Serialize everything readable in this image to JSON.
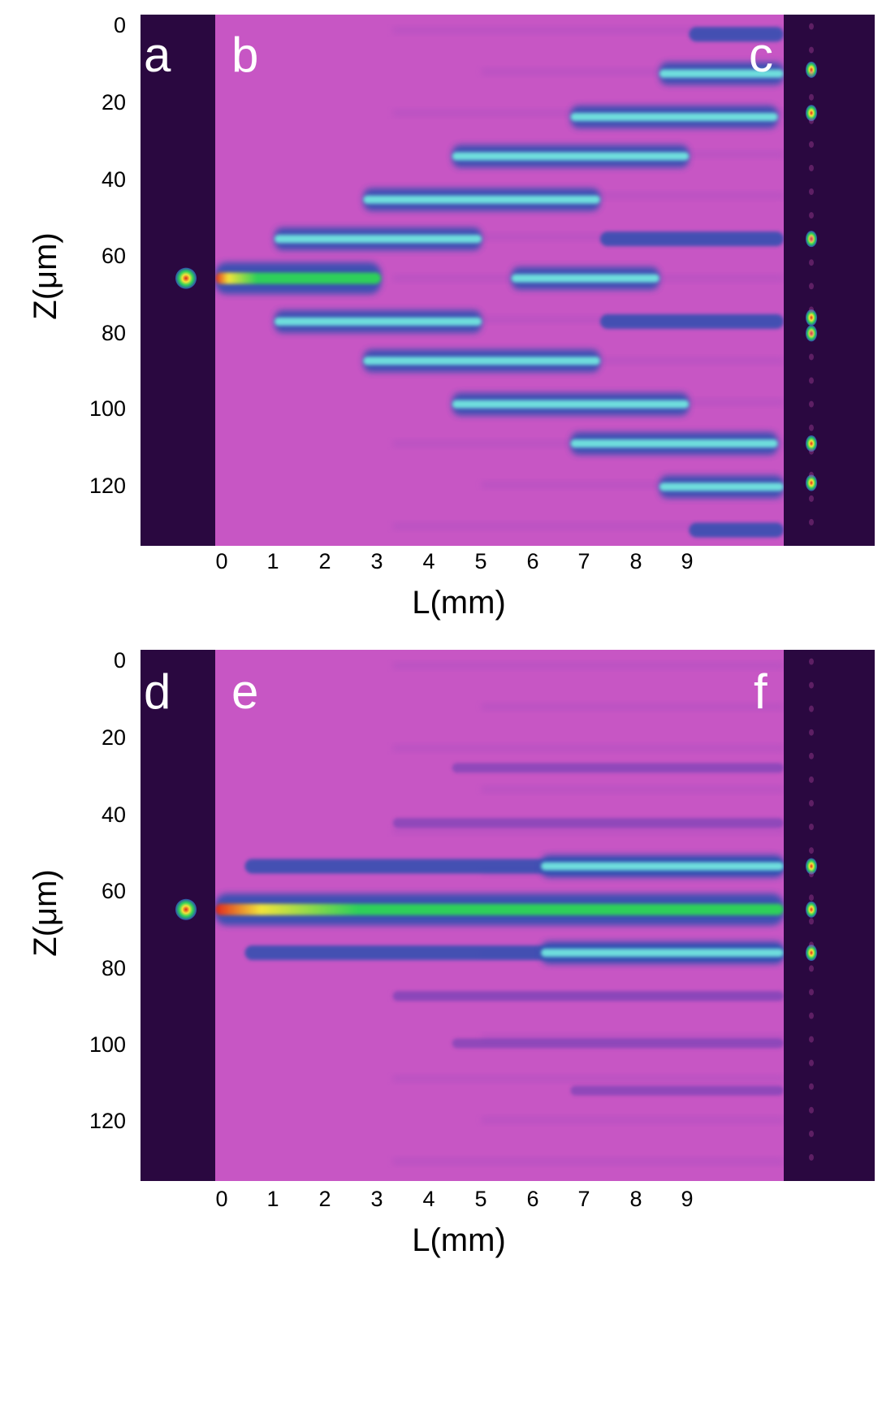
{
  "colors": {
    "dark_panel": "#2a0840",
    "background_magenta": "#c756c4",
    "band_blue": "#2e4fb0",
    "band_cyan": "#72e6e0",
    "spot_red": "#e0261c",
    "spot_yellow": "#f2e43a",
    "spot_green": "#2fd05a"
  },
  "chart_data": [
    {
      "type": "heatmap",
      "panels": [
        "a",
        "b",
        "c"
      ],
      "xlabel": "L(mm)",
      "ylabel": "Z(μm)",
      "xticks": [
        "0",
        "1",
        "2",
        "3",
        "4",
        "5",
        "6",
        "7",
        "8",
        "9"
      ],
      "yticks": [
        "0",
        "20",
        "40",
        "60",
        "80",
        "100",
        "120"
      ],
      "xlim": [
        0,
        9.6
      ],
      "ylim": [
        0,
        135
      ],
      "input_spot_z": 67,
      "description_bands": [
        {
          "z": 67,
          "start": 0,
          "end": 2.8,
          "intensity": "high"
        },
        {
          "z": 57,
          "start": 1,
          "end": 4.5,
          "intensity": "cyan"
        },
        {
          "z": 78,
          "start": 1,
          "end": 4.5,
          "intensity": "cyan"
        },
        {
          "z": 47,
          "start": 2.5,
          "end": 6.5,
          "intensity": "cyan"
        },
        {
          "z": 88,
          "start": 2.5,
          "end": 6.5,
          "intensity": "cyan"
        },
        {
          "z": 36,
          "start": 4,
          "end": 8,
          "intensity": "cyan"
        },
        {
          "z": 99,
          "start": 4,
          "end": 8,
          "intensity": "cyan"
        },
        {
          "z": 67,
          "start": 5,
          "end": 7.5,
          "intensity": "cyan"
        },
        {
          "z": 26,
          "start": 6,
          "end": 9.5,
          "intensity": "cyan"
        },
        {
          "z": 109,
          "start": 6,
          "end": 9.5,
          "intensity": "cyan"
        },
        {
          "z": 15,
          "start": 7.5,
          "end": 9.6,
          "intensity": "cyan"
        },
        {
          "z": 120,
          "start": 7.5,
          "end": 9.6,
          "intensity": "cyan"
        },
        {
          "z": 5,
          "start": 8,
          "end": 9.6,
          "intensity": "blue"
        },
        {
          "z": 131,
          "start": 8,
          "end": 9.6,
          "intensity": "blue"
        },
        {
          "z": 57,
          "start": 6.5,
          "end": 9.6,
          "intensity": "blue"
        },
        {
          "z": 78,
          "start": 6.5,
          "end": 9.6,
          "intensity": "blue"
        }
      ],
      "output_spots_z": [
        14,
        25,
        57,
        77,
        81,
        109,
        119
      ]
    },
    {
      "type": "heatmap",
      "panels": [
        "d",
        "e",
        "f"
      ],
      "xlabel": "L(mm)",
      "ylabel": "Z(μm)",
      "xticks": [
        "0",
        "1",
        "2",
        "3",
        "4",
        "5",
        "6",
        "7",
        "8",
        "9"
      ],
      "yticks": [
        "0",
        "20",
        "40",
        "60",
        "80",
        "100",
        "120"
      ],
      "xlim": [
        0,
        9.6
      ],
      "ylim": [
        0,
        135
      ],
      "input_spot_z": 66,
      "description_bands": [
        {
          "z": 66,
          "start": 0,
          "end": 9.6,
          "intensity": "high"
        },
        {
          "z": 55,
          "start": 0.5,
          "end": 9.6,
          "intensity": "blue"
        },
        {
          "z": 77,
          "start": 0.5,
          "end": 9.6,
          "intensity": "blue"
        },
        {
          "z": 55,
          "start": 5.5,
          "end": 9.6,
          "intensity": "cyan"
        },
        {
          "z": 77,
          "start": 5.5,
          "end": 9.6,
          "intensity": "cyan"
        },
        {
          "z": 44,
          "start": 3,
          "end": 9.6,
          "intensity": "faint"
        },
        {
          "z": 88,
          "start": 3,
          "end": 9.6,
          "intensity": "faint"
        },
        {
          "z": 30,
          "start": 4,
          "end": 9.6,
          "intensity": "faint"
        },
        {
          "z": 100,
          "start": 4,
          "end": 9.6,
          "intensity": "faint"
        },
        {
          "z": 112,
          "start": 6,
          "end": 9.6,
          "intensity": "faint"
        }
      ],
      "output_spots_z": [
        55,
        66,
        77
      ]
    }
  ]
}
